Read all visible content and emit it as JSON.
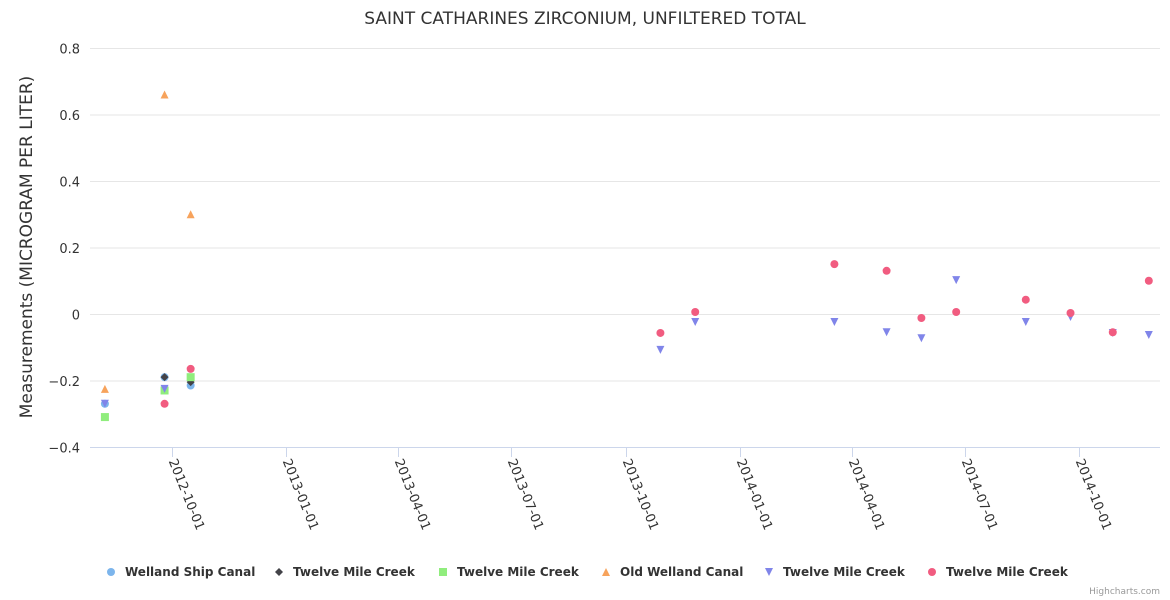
{
  "chart_data": {
    "type": "scatter",
    "title": "SAINT CATHARINES ZIRCONIUM, UNFILTERED TOTAL",
    "xlabel": "",
    "ylabel": "Measurements (MICROGRAM PER LITER)",
    "ylim": [
      -0.4,
      0.8
    ],
    "yticks": [
      -0.4,
      -0.2,
      0,
      0.2,
      0.4,
      0.6,
      0.8
    ],
    "ytick_labels": [
      "−0.4",
      "−0.2",
      "0",
      "0.2",
      "0.4",
      "0.6",
      "0.8"
    ],
    "xlim": [
      "2012-07-27",
      "2014-12-05"
    ],
    "xticks": [
      "2012-10-01",
      "2013-01-01",
      "2013-04-01",
      "2013-07-01",
      "2013-10-01",
      "2014-01-01",
      "2014-04-01",
      "2014-07-01",
      "2014-10-01"
    ],
    "grid": true,
    "legend_position": "bottom",
    "credit": "Highcharts.com",
    "series": [
      {
        "name": "Welland Ship Canal",
        "marker": "circle",
        "color": "#7cb5ec",
        "points": [
          [
            "2012-08-08",
            -0.27
          ],
          [
            "2012-09-25",
            -0.19
          ],
          [
            "2012-10-16",
            -0.215
          ]
        ]
      },
      {
        "name": "Twelve Mile Creek",
        "marker": "diamond",
        "color": "#434348",
        "points": [
          [
            "2012-09-25",
            -0.19
          ],
          [
            "2012-10-16",
            -0.205
          ]
        ]
      },
      {
        "name": "Twelve Mile Creek",
        "marker": "square",
        "color": "#90ed7d",
        "points": [
          [
            "2012-08-08",
            -0.31
          ],
          [
            "2012-09-25",
            -0.23
          ],
          [
            "2012-10-16",
            -0.19
          ]
        ]
      },
      {
        "name": "Old Welland Canal",
        "marker": "triangle",
        "color": "#f7a35c",
        "points": [
          [
            "2012-08-08",
            -0.225
          ],
          [
            "2012-09-25",
            0.66
          ],
          [
            "2012-10-16",
            0.3
          ]
        ]
      },
      {
        "name": "Twelve Mile Creek",
        "marker": "triangle-down",
        "color": "#8085e9",
        "points": [
          [
            "2012-08-08",
            -0.27
          ],
          [
            "2012-09-25",
            -0.225
          ],
          [
            "2013-10-29",
            -0.108
          ],
          [
            "2013-11-26",
            -0.024
          ],
          [
            "2014-03-18",
            -0.024
          ],
          [
            "2014-04-29",
            -0.055
          ],
          [
            "2014-05-27",
            -0.073
          ],
          [
            "2014-06-24",
            0.102
          ],
          [
            "2014-08-19",
            -0.024
          ],
          [
            "2014-09-24",
            -0.009
          ],
          [
            "2014-10-28",
            -0.057
          ],
          [
            "2014-11-26",
            -0.063
          ]
        ]
      },
      {
        "name": "Twelve Mile Creek",
        "marker": "circle",
        "color": "#f15c80",
        "points": [
          [
            "2012-09-25",
            -0.27
          ],
          [
            "2012-10-16",
            -0.165
          ],
          [
            "2013-10-29",
            -0.057
          ],
          [
            "2013-11-26",
            0.006
          ],
          [
            "2014-03-18",
            0.15
          ],
          [
            "2014-04-29",
            0.13
          ],
          [
            "2014-05-27",
            -0.012
          ],
          [
            "2014-06-24",
            0.006
          ],
          [
            "2014-08-19",
            0.043
          ],
          [
            "2014-09-24",
            0.003
          ],
          [
            "2014-10-28",
            -0.055
          ],
          [
            "2014-11-26",
            0.1
          ]
        ]
      }
    ]
  }
}
